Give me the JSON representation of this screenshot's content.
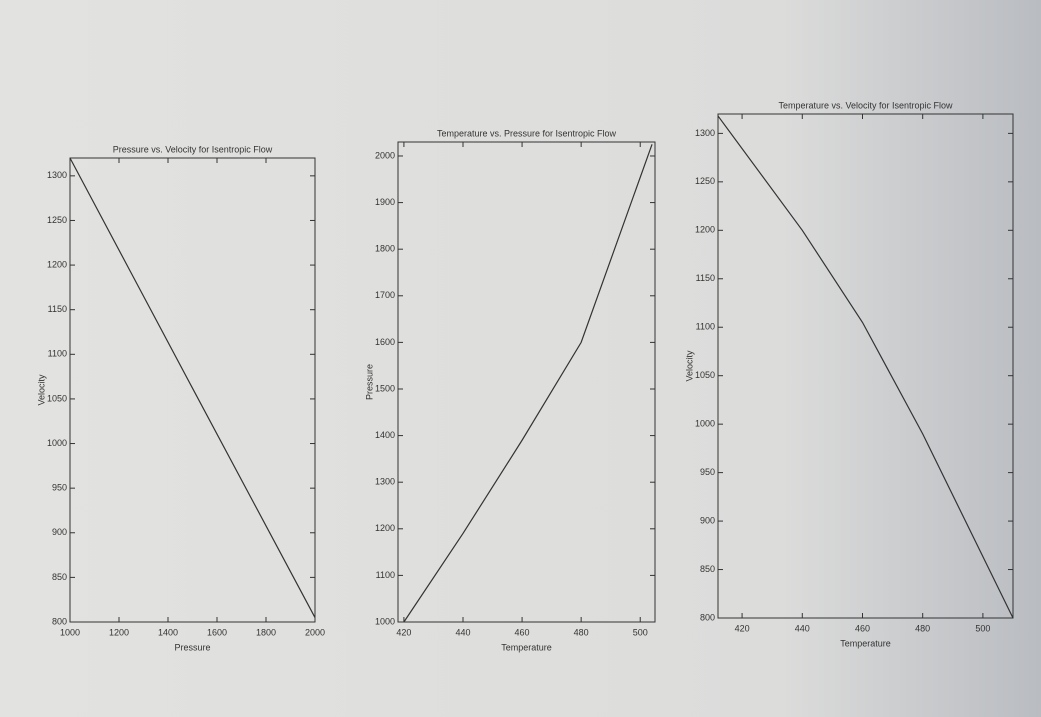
{
  "chart_data": [
    {
      "type": "line",
      "title": "Pressure vs. Velocity for Isentropic Flow",
      "x_label": "Pressure",
      "y_label": "Velocity",
      "x": [
        1000,
        1500,
        2000
      ],
      "series": [
        {
          "name": "Velocity",
          "color": "#333333",
          "values": [
            1320,
            1062,
            805
          ]
        }
      ],
      "xlim": [
        1000,
        2000
      ],
      "xticks": [
        1000,
        1200,
        1400,
        1600,
        1800,
        2000
      ],
      "ylim": [
        800,
        1320
      ],
      "yticks": [
        800,
        850,
        900,
        950,
        1000,
        1050,
        1100,
        1150,
        1200,
        1250,
        1300
      ],
      "grid": false
    },
    {
      "type": "line",
      "title": "Temperature vs. Pressure for Isentropic Flow",
      "x_label": "Temperature",
      "y_label": "Pressure",
      "x": [
        420,
        440,
        460,
        480,
        504
      ],
      "series": [
        {
          "name": "Pressure",
          "color": "#333333",
          "values": [
            1000,
            1190,
            1390,
            1600,
            2025
          ]
        }
      ],
      "xlim": [
        418,
        505
      ],
      "xticks": [
        420,
        440,
        460,
        480,
        500
      ],
      "ylim": [
        1000,
        2030
      ],
      "yticks": [
        1000,
        1100,
        1200,
        1300,
        1400,
        1500,
        1600,
        1700,
        1800,
        1900,
        2000
      ],
      "grid": false
    },
    {
      "type": "line",
      "title": "Temperature vs. Velocity for Isentropic Flow",
      "x_label": "Temperature",
      "y_label": "Velocity",
      "x": [
        412,
        440,
        460,
        480,
        510
      ],
      "series": [
        {
          "name": "Velocity",
          "color": "#333333",
          "values": [
            1318,
            1200,
            1105,
            990,
            800
          ]
        }
      ],
      "xlim": [
        412,
        510
      ],
      "xticks": [
        420,
        440,
        460,
        480,
        500
      ],
      "ylim": [
        800,
        1320
      ],
      "yticks": [
        800,
        850,
        900,
        950,
        1000,
        1050,
        1100,
        1150,
        1200,
        1250,
        1300
      ],
      "grid": false
    }
  ]
}
